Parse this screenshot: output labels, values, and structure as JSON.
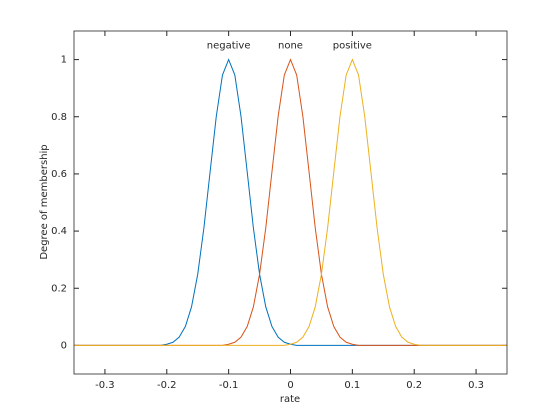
{
  "chart_data": {
    "type": "line",
    "xlabel": "rate",
    "ylabel": "Degree of membership",
    "x": [
      -0.35,
      -0.21,
      -0.2,
      -0.19,
      -0.18,
      -0.17,
      -0.16,
      -0.15,
      -0.14,
      -0.13,
      -0.12,
      -0.11,
      -0.1,
      -0.09,
      -0.08,
      -0.07,
      -0.06,
      -0.05,
      -0.04,
      -0.03,
      -0.02,
      -0.01,
      0,
      0.01,
      0.02,
      0.03,
      0.04,
      0.05,
      0.06,
      0.07,
      0.08,
      0.09,
      0.1,
      0.11,
      0.12,
      0.13,
      0.14,
      0.15,
      0.16,
      0.17,
      0.18,
      0.19,
      0.2,
      0.21,
      0.35
    ],
    "series": [
      {
        "name": "negative",
        "color": "#0072bd",
        "values": [
          0,
          0,
          0.004,
          0.011,
          0.029,
          0.066,
          0.135,
          0.249,
          0.411,
          0.607,
          0.801,
          0.946,
          1,
          0.946,
          0.801,
          0.607,
          0.411,
          0.249,
          0.135,
          0.066,
          0.029,
          0.011,
          0.004,
          0,
          0,
          0,
          0,
          0,
          0,
          0,
          0,
          0,
          0,
          0,
          0,
          0,
          0,
          0,
          0,
          0,
          0,
          0,
          0,
          0,
          0
        ]
      },
      {
        "name": "none",
        "color": "#d95319",
        "values": [
          0,
          0,
          0,
          0,
          0,
          0,
          0,
          0,
          0,
          0,
          0,
          0,
          0.004,
          0.011,
          0.029,
          0.066,
          0.135,
          0.249,
          0.411,
          0.607,
          0.801,
          0.946,
          1,
          0.946,
          0.801,
          0.607,
          0.411,
          0.249,
          0.135,
          0.066,
          0.029,
          0.011,
          0.004,
          0,
          0,
          0,
          0,
          0,
          0,
          0,
          0,
          0,
          0,
          0,
          0
        ]
      },
      {
        "name": "positive",
        "color": "#edb120",
        "values": [
          0,
          0,
          0,
          0,
          0,
          0,
          0,
          0,
          0,
          0,
          0,
          0,
          0,
          0,
          0,
          0,
          0,
          0,
          0,
          0,
          0,
          0,
          0.004,
          0.011,
          0.029,
          0.066,
          0.135,
          0.249,
          0.411,
          0.607,
          0.801,
          0.946,
          1,
          0.946,
          0.801,
          0.607,
          0.411,
          0.249,
          0.135,
          0.066,
          0.029,
          0.011,
          0.004,
          0,
          0
        ]
      }
    ],
    "xlim": [
      -0.35,
      0.35
    ],
    "xticks": [
      -0.3,
      -0.2,
      -0.1,
      0,
      0.1,
      0.2,
      0.3
    ],
    "ylim": [
      -0.1,
      1.1
    ],
    "yticks": [
      0,
      0.2,
      0.4,
      0.6,
      0.8,
      1
    ],
    "grid": false
  }
}
